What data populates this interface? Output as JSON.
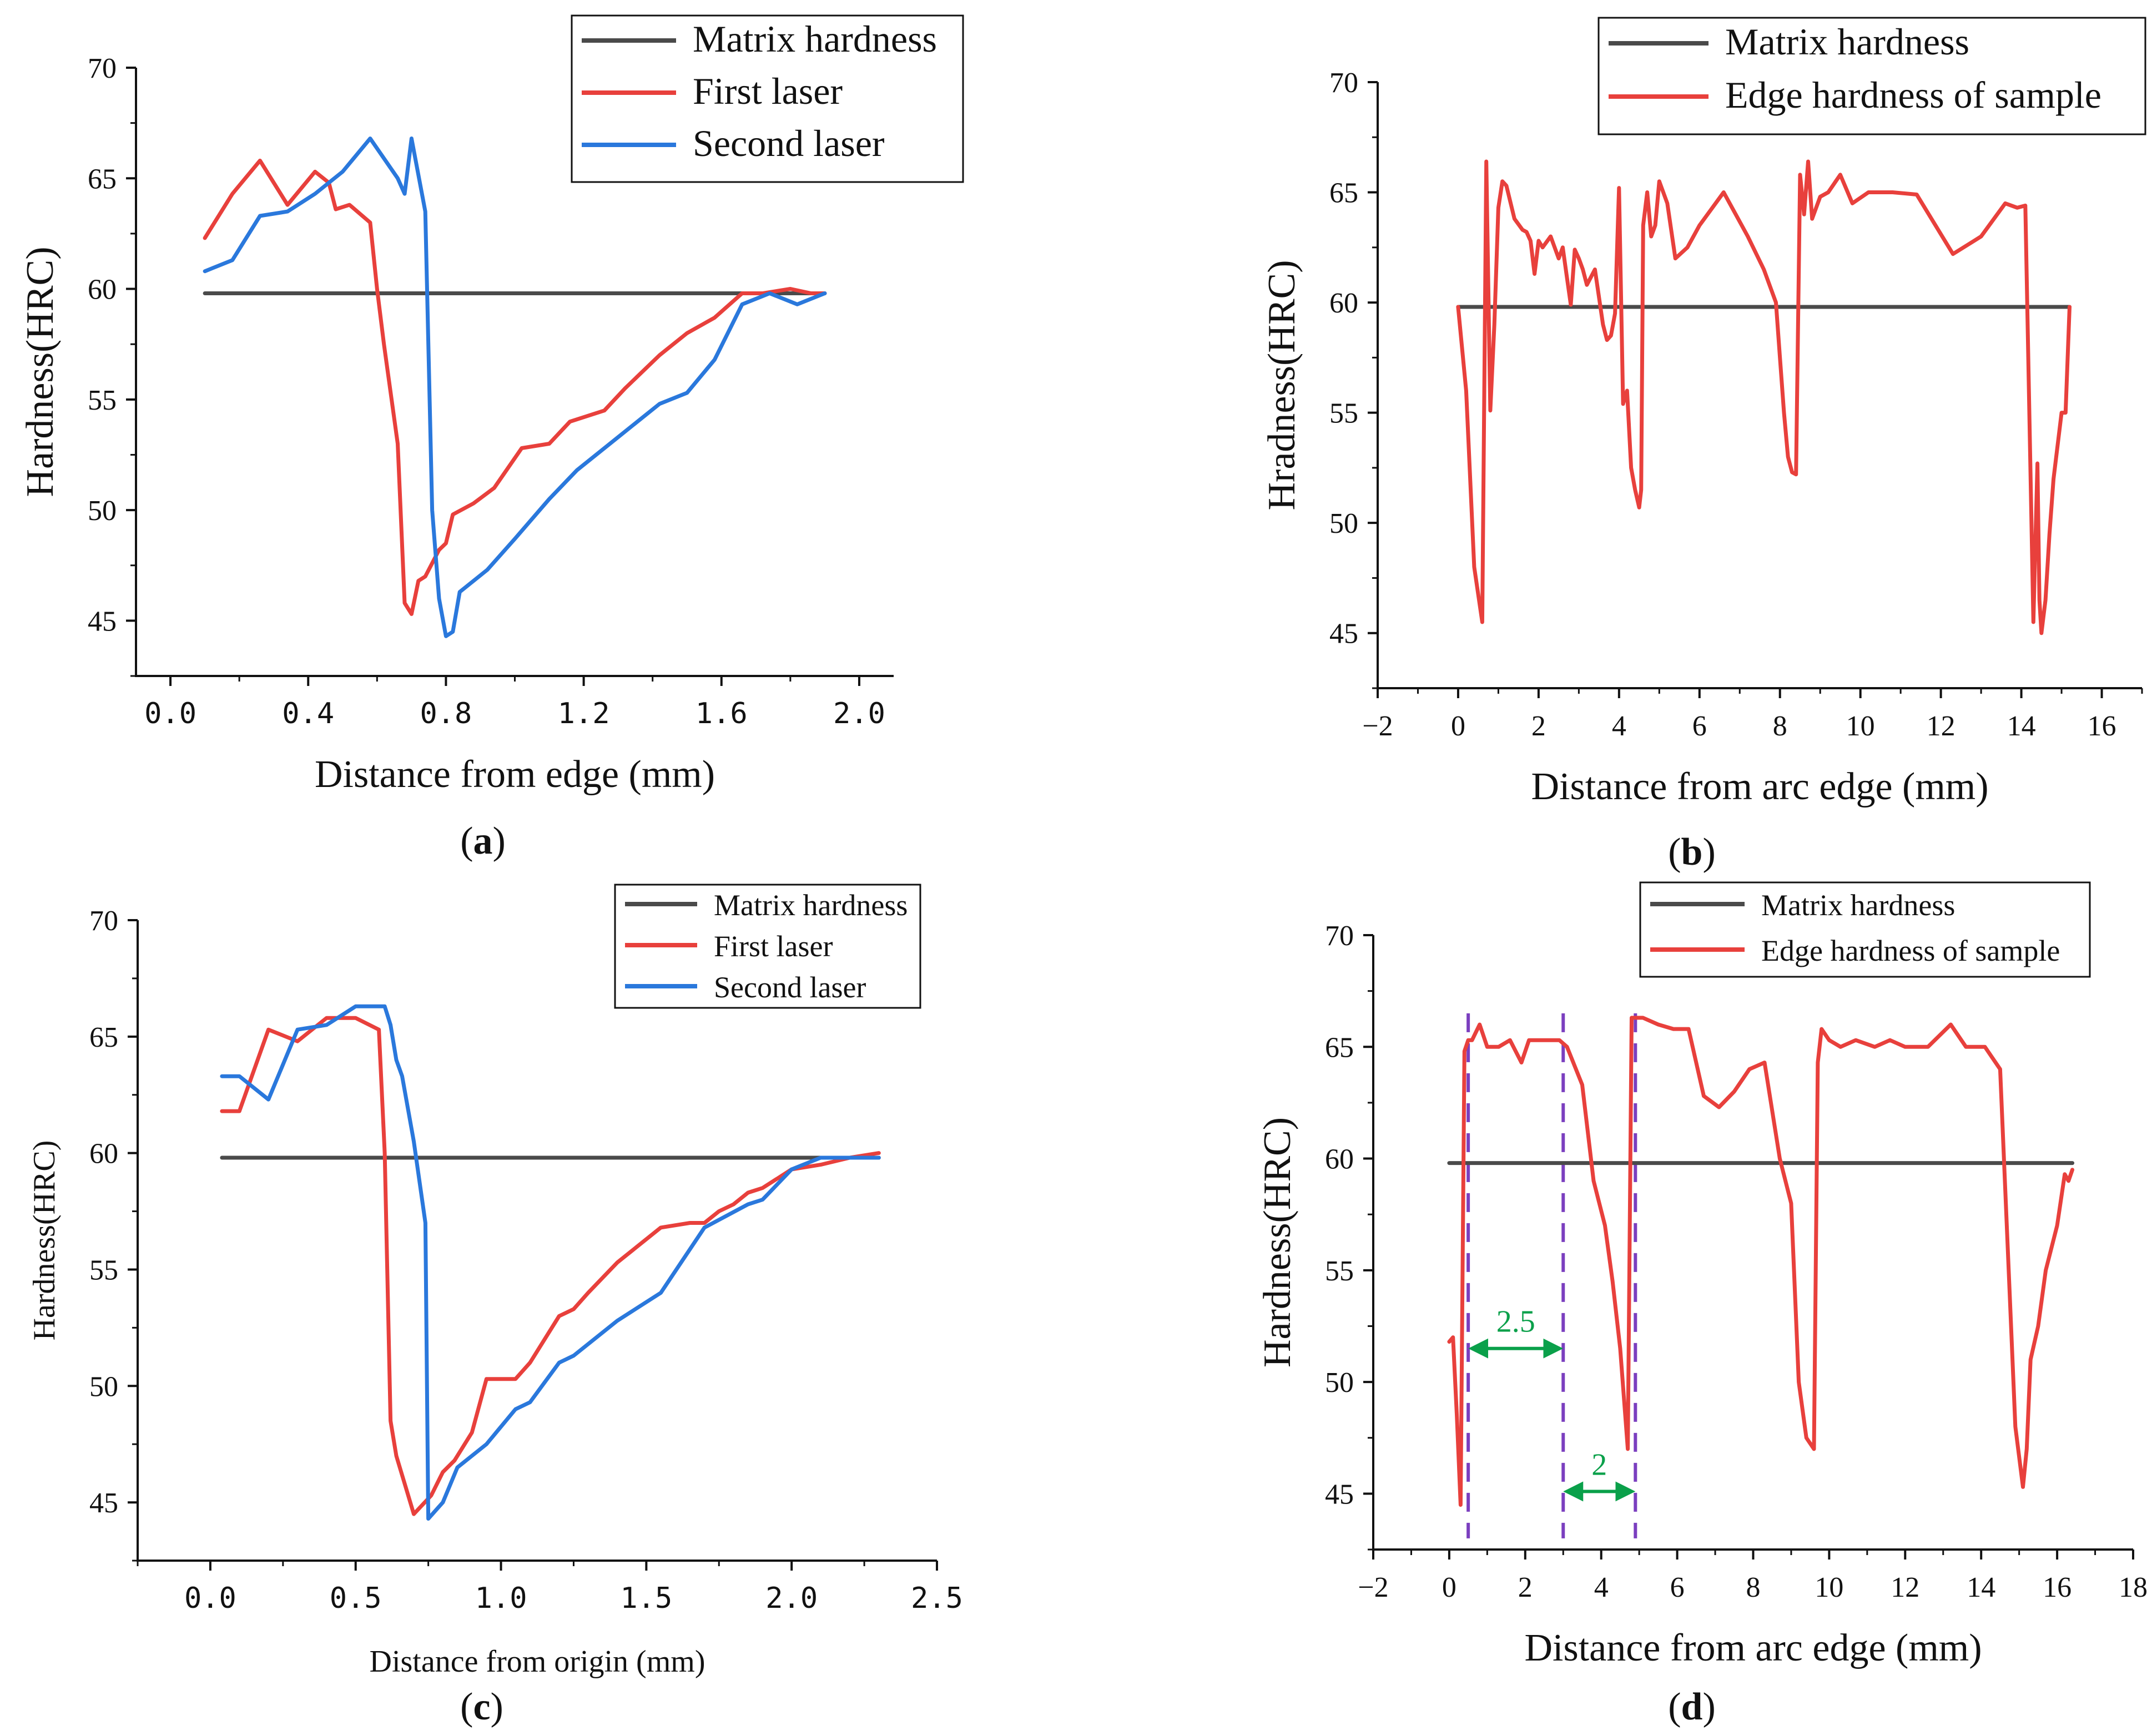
{
  "chart_data": [
    {
      "id": "a",
      "type": "line",
      "caption": "a",
      "xlabel": "Distance from edge (mm)",
      "ylabel": "Hardness(HRC)",
      "xlim": [
        -0.1,
        2.1
      ],
      "ylim": [
        42.5,
        70
      ],
      "xticks": [
        0.0,
        0.4,
        0.8,
        1.2,
        1.6,
        2.0
      ],
      "xtick_labels": [
        "0.0",
        "0.4",
        "0.8",
        "1.2",
        "1.6",
        "2.0"
      ],
      "yticks": [
        45,
        50,
        55,
        60,
        65,
        70
      ],
      "ytick_labels": [
        "45",
        "50",
        "55",
        "60",
        "65",
        "70"
      ],
      "legend_position": "top-right",
      "series": [
        {
          "name": "Matrix hardness",
          "color": "#4a4a4a",
          "x": [
            0.1,
            1.9
          ],
          "y": [
            59.8,
            59.8
          ]
        },
        {
          "name": "First laser",
          "color": "#e8403c",
          "x": [
            0.1,
            0.18,
            0.26,
            0.34,
            0.42,
            0.46,
            0.48,
            0.52,
            0.58,
            0.6,
            0.62,
            0.66,
            0.68,
            0.7,
            0.72,
            0.74,
            0.78,
            0.8,
            0.82,
            0.88,
            0.94,
            1.02,
            1.1,
            1.16,
            1.26,
            1.32,
            1.42,
            1.5,
            1.58,
            1.66,
            1.72,
            1.8,
            1.86,
            1.9
          ],
          "y": [
            62.3,
            64.3,
            65.8,
            63.8,
            65.3,
            64.8,
            63.6,
            63.8,
            63.0,
            60.0,
            57.5,
            53.0,
            45.8,
            45.3,
            46.8,
            47.0,
            48.2,
            48.5,
            49.8,
            50.3,
            51.0,
            52.8,
            53.0,
            54.0,
            54.5,
            55.5,
            57.0,
            58.0,
            58.7,
            59.8,
            59.8,
            60.0,
            59.8,
            59.8
          ]
        },
        {
          "name": "Second laser",
          "color": "#2a78dc",
          "x": [
            0.1,
            0.18,
            0.26,
            0.34,
            0.42,
            0.5,
            0.58,
            0.66,
            0.68,
            0.7,
            0.74,
            0.76,
            0.78,
            0.8,
            0.82,
            0.84,
            0.92,
            1.0,
            1.1,
            1.18,
            1.3,
            1.42,
            1.5,
            1.58,
            1.66,
            1.74,
            1.82,
            1.9
          ],
          "y": [
            60.8,
            61.3,
            63.3,
            63.5,
            64.3,
            65.3,
            66.8,
            65.0,
            64.3,
            66.8,
            63.5,
            50.0,
            46.0,
            44.3,
            44.5,
            46.3,
            47.3,
            48.7,
            50.5,
            51.8,
            53.3,
            54.8,
            55.3,
            56.8,
            59.3,
            59.8,
            59.3,
            59.8
          ]
        }
      ]
    },
    {
      "id": "b",
      "type": "line",
      "caption": "b",
      "xlabel": "Distance from arc edge (mm)",
      "ylabel": "Hradness(HRC)",
      "xlim": [
        -2,
        17
      ],
      "ylim": [
        42.5,
        70
      ],
      "xticks": [
        -2,
        0,
        2,
        4,
        6,
        8,
        10,
        12,
        14,
        16
      ],
      "xtick_labels": [
        "−2",
        "0",
        "2",
        "4",
        "6",
        "8",
        "10",
        "12",
        "14",
        "16"
      ],
      "yticks": [
        45,
        50,
        55,
        60,
        65,
        70
      ],
      "ytick_labels": [
        "45",
        "50",
        "55",
        "60",
        "65",
        "70"
      ],
      "legend_position": "top-right",
      "series": [
        {
          "name": "Matrix hardness",
          "color": "#4a4a4a",
          "x": [
            0,
            15.2
          ],
          "y": [
            59.8,
            59.8
          ]
        },
        {
          "name": "Edge hardness of sample",
          "color": "#e8403c",
          "x": [
            0,
            0.2,
            0.4,
            0.6,
            0.7,
            0.8,
            0.9,
            1.0,
            1.1,
            1.2,
            1.4,
            1.6,
            1.7,
            1.8,
            1.9,
            2.0,
            2.1,
            2.3,
            2.5,
            2.6,
            2.7,
            2.8,
            2.9,
            3.0,
            3.1,
            3.2,
            3.4,
            3.6,
            3.7,
            3.8,
            3.9,
            4.0,
            4.1,
            4.2,
            4.3,
            4.4,
            4.5,
            4.55,
            4.6,
            4.7,
            4.8,
            4.9,
            5.0,
            5.2,
            5.4,
            5.7,
            6.0,
            6.6,
            7.2,
            7.6,
            7.9,
            8.0,
            8.1,
            8.2,
            8.3,
            8.4,
            8.5,
            8.6,
            8.7,
            8.8,
            9.0,
            9.2,
            9.5,
            9.8,
            10.2,
            10.8,
            11.4,
            12.3,
            13.0,
            13.6,
            13.9,
            14.1,
            14.3,
            14.4,
            14.45,
            14.5,
            14.6,
            14.7,
            14.8,
            15.0,
            15.1,
            15.2
          ],
          "y": [
            59.8,
            56.0,
            48.0,
            45.5,
            66.4,
            55.1,
            59.0,
            64.3,
            65.5,
            65.3,
            63.8,
            63.3,
            63.2,
            62.8,
            61.3,
            62.8,
            62.5,
            63.0,
            62.0,
            62.5,
            61.2,
            59.9,
            62.4,
            62.0,
            61.5,
            60.8,
            61.5,
            59.0,
            58.3,
            58.5,
            59.5,
            65.2,
            55.4,
            56.0,
            52.5,
            51.5,
            50.7,
            51.5,
            63.5,
            65.0,
            63.0,
            63.5,
            65.5,
            64.5,
            62.0,
            62.5,
            63.5,
            65.0,
            63.0,
            61.5,
            60.0,
            57.5,
            55.0,
            53.0,
            52.3,
            52.2,
            65.8,
            64.0,
            66.4,
            63.8,
            64.8,
            65.0,
            65.8,
            64.5,
            65.0,
            65.0,
            64.9,
            62.2,
            63.0,
            64.5,
            64.3,
            64.4,
            45.5,
            52.7,
            46.5,
            45.0,
            46.5,
            49.5,
            52.0,
            55.0,
            55.0,
            59.8
          ]
        }
      ]
    },
    {
      "id": "c",
      "type": "line",
      "caption": "c",
      "xlabel": "Distance from origin (mm)",
      "ylabel": "Hardness(HRC)",
      "xlim": [
        -0.25,
        2.5
      ],
      "ylim": [
        42.5,
        70
      ],
      "xticks": [
        0.0,
        0.5,
        1.0,
        1.5,
        2.0,
        2.5
      ],
      "xtick_labels": [
        "0.0",
        "0.5",
        "1.0",
        "1.5",
        "2.0",
        "2.5"
      ],
      "yticks": [
        45,
        50,
        55,
        60,
        65,
        70
      ],
      "ytick_labels": [
        "45",
        "50",
        "55",
        "60",
        "65",
        "70"
      ],
      "legend_position": "top-right",
      "series": [
        {
          "name": "Matrix hardness",
          "color": "#4a4a4a",
          "x": [
            0.04,
            2.3
          ],
          "y": [
            59.8,
            59.8
          ]
        },
        {
          "name": "First laser",
          "color": "#e8403c",
          "x": [
            0.04,
            0.1,
            0.2,
            0.3,
            0.4,
            0.5,
            0.58,
            0.6,
            0.62,
            0.64,
            0.7,
            0.76,
            0.8,
            0.84,
            0.9,
            0.95,
            1.05,
            1.1,
            1.2,
            1.25,
            1.3,
            1.4,
            1.55,
            1.65,
            1.7,
            1.75,
            1.8,
            1.85,
            1.9,
            2.0,
            2.1,
            2.2,
            2.3
          ],
          "y": [
            61.8,
            61.8,
            65.3,
            64.8,
            65.8,
            65.8,
            65.3,
            60.0,
            48.5,
            47.0,
            44.5,
            45.3,
            46.3,
            46.8,
            48.0,
            50.3,
            50.3,
            51.0,
            53.0,
            53.3,
            54.0,
            55.3,
            56.8,
            57.0,
            57.0,
            57.5,
            57.8,
            58.3,
            58.5,
            59.3,
            59.5,
            59.8,
            60.0
          ]
        },
        {
          "name": "Second laser",
          "color": "#2a78dc",
          "x": [
            0.04,
            0.1,
            0.2,
            0.3,
            0.4,
            0.5,
            0.6,
            0.62,
            0.64,
            0.66,
            0.7,
            0.74,
            0.75,
            0.8,
            0.85,
            0.95,
            1.05,
            1.1,
            1.2,
            1.25,
            1.4,
            1.55,
            1.7,
            1.85,
            1.9,
            2.0,
            2.1,
            2.2,
            2.3
          ],
          "y": [
            63.3,
            63.3,
            62.3,
            65.3,
            65.5,
            66.3,
            66.3,
            65.5,
            64.0,
            63.3,
            60.5,
            57.0,
            44.3,
            45.0,
            46.5,
            47.5,
            49.0,
            49.3,
            51.0,
            51.3,
            52.8,
            54.0,
            56.8,
            57.8,
            58.0,
            59.3,
            59.8,
            59.8,
            59.8
          ]
        }
      ]
    },
    {
      "id": "d",
      "type": "line",
      "caption": "d",
      "xlabel": "Distance from arc edge (mm)",
      "ylabel": "Hardness(HRC)",
      "xlim": [
        -2,
        18
      ],
      "ylim": [
        42.5,
        70
      ],
      "xticks": [
        -2,
        0,
        2,
        4,
        6,
        8,
        10,
        12,
        14,
        16,
        18
      ],
      "xtick_labels": [
        "−2",
        "0",
        "2",
        "4",
        "6",
        "8",
        "10",
        "12",
        "14",
        "16",
        "18"
      ],
      "yticks": [
        45,
        50,
        55,
        60,
        65,
        70
      ],
      "ytick_labels": [
        "45",
        "50",
        "55",
        "60",
        "65",
        "70"
      ],
      "legend_position": "top-right",
      "annotations": [
        {
          "text": "2.5",
          "x_from": 0.5,
          "x_to": 3.0,
          "y": 51.5
        },
        {
          "text": "2",
          "x_from": 3.0,
          "x_to": 4.9,
          "y": 45.1
        }
      ],
      "dashed_vertical_lines_x": [
        0.5,
        3.0,
        4.9
      ],
      "series": [
        {
          "name": "Matrix hardness",
          "color": "#4a4a4a",
          "x": [
            0,
            16.4
          ],
          "y": [
            59.8,
            59.8
          ]
        },
        {
          "name": "Edge hardness of sample",
          "color": "#e8403c",
          "x": [
            0,
            0.1,
            0.2,
            0.3,
            0.4,
            0.5,
            0.6,
            0.8,
            1.0,
            1.3,
            1.6,
            1.9,
            2.1,
            2.5,
            2.9,
            3.1,
            3.5,
            3.8,
            4.1,
            4.3,
            4.5,
            4.7,
            4.8,
            4.9,
            5.1,
            5.5,
            5.9,
            6.3,
            6.7,
            7.1,
            7.5,
            7.9,
            8.3,
            8.7,
            9.0,
            9.2,
            9.4,
            9.6,
            9.7,
            9.8,
            10.0,
            10.3,
            10.7,
            11.2,
            11.6,
            12.0,
            12.6,
            13.2,
            13.6,
            13.9,
            14.1,
            14.5,
            14.9,
            15.1,
            15.2,
            15.3,
            15.5,
            15.7,
            16.0,
            16.2,
            16.3,
            16.4
          ],
          "y": [
            51.8,
            52.0,
            48.5,
            44.5,
            64.8,
            65.3,
            65.3,
            66.0,
            65.0,
            65.0,
            65.3,
            64.3,
            65.3,
            65.3,
            65.3,
            65.0,
            63.3,
            59.0,
            57.0,
            54.5,
            51.5,
            47.0,
            66.3,
            66.3,
            66.3,
            66.0,
            65.8,
            65.8,
            62.8,
            62.3,
            63.0,
            64.0,
            64.3,
            60.0,
            58.0,
            50.0,
            47.5,
            47.0,
            64.3,
            65.8,
            65.3,
            65.0,
            65.3,
            65.0,
            65.3,
            65.0,
            65.0,
            66.0,
            65.0,
            65.0,
            65.0,
            64.0,
            48.0,
            45.3,
            47.0,
            51.0,
            52.5,
            55.0,
            57.0,
            59.3,
            59.0,
            59.5
          ]
        }
      ]
    }
  ]
}
